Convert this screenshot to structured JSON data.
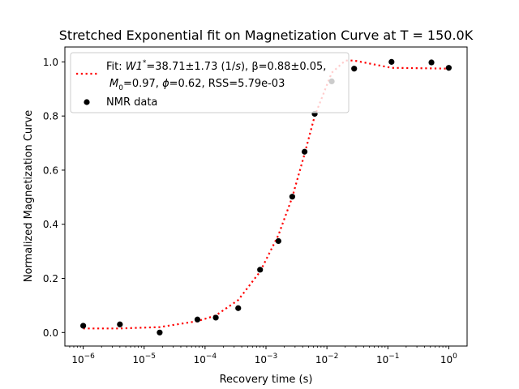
{
  "chart_data": {
    "type": "scatter",
    "title": "Stretched Exponential fit on Magnetization Curve at T = 150.0K",
    "xlabel": "Recovery time (s)",
    "ylabel": "Normalized Magnetization Curve",
    "xscale": "log",
    "xlim": [
      5e-07,
      2
    ],
    "ylim": [
      -0.05,
      1.055
    ],
    "x_ticks": [
      1e-06,
      1e-05,
      0.0001,
      0.001,
      0.01,
      0.1,
      1
    ],
    "x_tick_labels": [
      {
        "base": "10",
        "exp": "−6"
      },
      {
        "base": "10",
        "exp": "−5"
      },
      {
        "base": "10",
        "exp": "−4"
      },
      {
        "base": "10",
        "exp": "−3"
      },
      {
        "base": "10",
        "exp": "−2"
      },
      {
        "base": "10",
        "exp": "−1"
      },
      {
        "base": "10",
        "exp": "0"
      }
    ],
    "y_ticks": [
      0.0,
      0.2,
      0.4,
      0.6,
      0.8,
      1.0
    ],
    "y_tick_labels": [
      "0.0",
      "0.2",
      "0.4",
      "0.6",
      "0.8",
      "1.0"
    ],
    "grid": false,
    "legend": {
      "placement": "top-left",
      "entries": [
        {
          "type": "dotted-line",
          "color": "#ff0000",
          "lines": [
            [
              {
                "t": "Fit: "
              },
              {
                "t": "W1",
                "italic": true
              },
              {
                "t": "*",
                "sup": true
              },
              {
                "t": "=38.71±1.73 (1/"
              },
              {
                "t": "s",
                "italic": true
              },
              {
                "t": "), β=0.88±0.05,"
              }
            ],
            [
              {
                "t": "M",
                "italic": true
              },
              {
                "t": "0",
                "sub": true
              },
              {
                "t": "=0.97, "
              },
              {
                "t": "ϕ",
                "italic": true
              },
              {
                "t": "=0.62, RSS=5.79e-03"
              }
            ]
          ]
        },
        {
          "type": "marker",
          "color": "#000000",
          "lines": [
            [
              {
                "t": "NMR data"
              }
            ]
          ]
        }
      ]
    },
    "series": [
      {
        "name": "NMR data",
        "kind": "scatter",
        "color": "#000000",
        "points": [
          [
            1e-06,
            0.025
          ],
          [
            4e-06,
            0.03
          ],
          [
            1.8e-05,
            0.0
          ],
          [
            7.5e-05,
            0.048
          ],
          [
            0.00015,
            0.055
          ],
          [
            0.00035,
            0.09
          ],
          [
            0.0008,
            0.232
          ],
          [
            0.0016,
            0.338
          ],
          [
            0.0027,
            0.502
          ],
          [
            0.0043,
            0.668
          ],
          [
            0.0063,
            0.808
          ],
          [
            0.012,
            0.928
          ],
          [
            0.028,
            0.975
          ],
          [
            0.115,
            1.0
          ],
          [
            0.52,
            0.998
          ],
          [
            1.0,
            0.978
          ]
        ]
      },
      {
        "name": "Fit",
        "kind": "line",
        "style": "dotted",
        "color": "#ff0000",
        "points": [
          [
            1e-06,
            0.015
          ],
          [
            4e-06,
            0.015
          ],
          [
            1.8e-05,
            0.02
          ],
          [
            7.5e-05,
            0.042
          ],
          [
            0.00015,
            0.063
          ],
          [
            0.00035,
            0.12
          ],
          [
            0.0008,
            0.225
          ],
          [
            0.0016,
            0.36
          ],
          [
            0.0027,
            0.5
          ],
          [
            0.0043,
            0.66
          ],
          [
            0.0063,
            0.8
          ],
          [
            0.012,
            0.96
          ],
          [
            0.02,
            1.005
          ],
          [
            0.028,
            1.005
          ],
          [
            0.115,
            0.978
          ],
          [
            0.52,
            0.976
          ],
          [
            1.0,
            0.975
          ]
        ]
      }
    ]
  }
}
